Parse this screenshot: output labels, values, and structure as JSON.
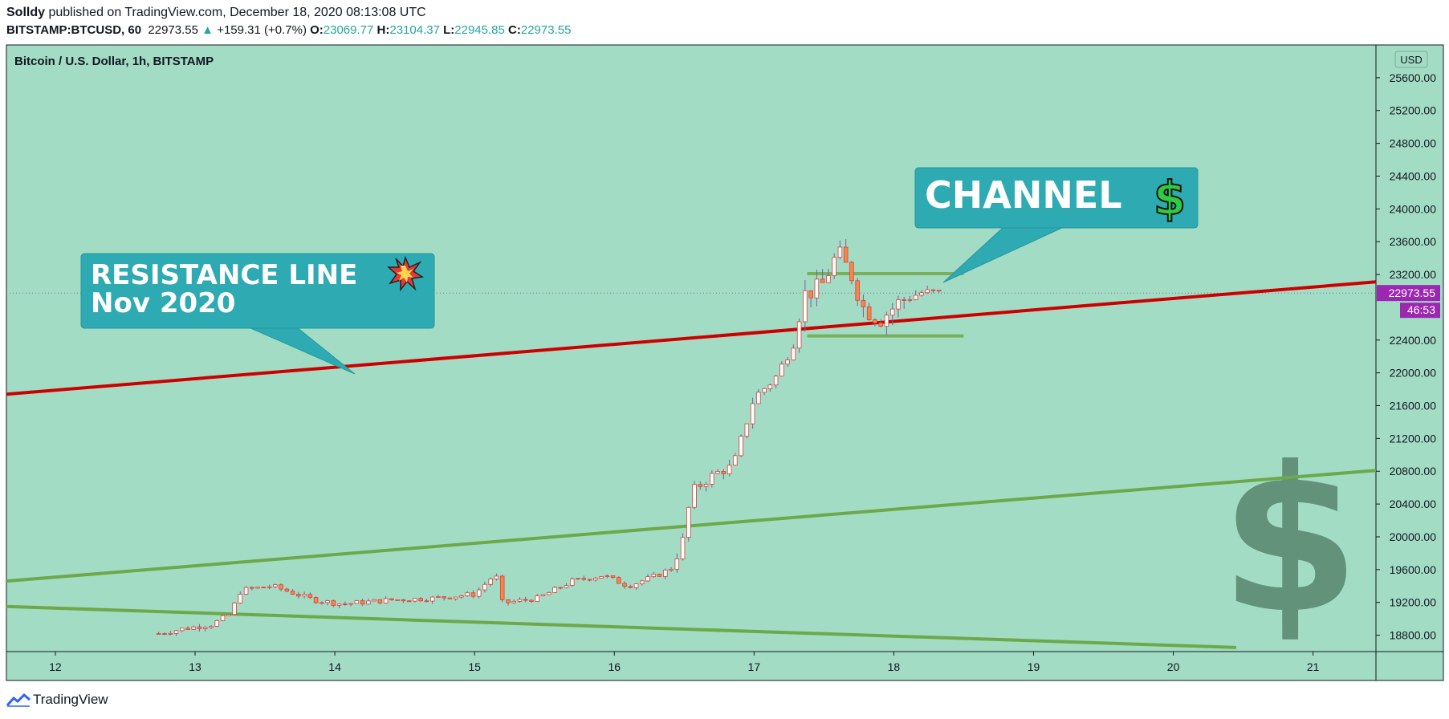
{
  "header": {
    "author": "Solldy",
    "published_text": "published on TradingView.com, December 18, 2020 08:13:08 UTC",
    "symbol": "BITSTAMP:BTCUSD, 60",
    "last": "22973.55",
    "change": "+159.31 (+0.7%)",
    "o_label": "O:",
    "o_value": "23069.77",
    "h_label": "H:",
    "h_value": "23104.37",
    "l_label": "L:",
    "l_value": "22945.85",
    "c_label": "C:",
    "c_value": "22973.55"
  },
  "footer": {
    "brand": "TradingView"
  },
  "chart_data": {
    "type": "candlestick",
    "title": "Bitcoin / U.S. Dollar, 1h, BITSTAMP",
    "currency": "USD",
    "x_ticks": [
      "12",
      "13",
      "14",
      "15",
      "16",
      "17",
      "18",
      "19",
      "20",
      "21"
    ],
    "y_ticks": [
      "25600.00",
      "25200.00",
      "24800.00",
      "24400.00",
      "24000.00",
      "23600.00",
      "23200.00",
      "22400.00",
      "22000.00",
      "21600.00",
      "21200.00",
      "20800.00",
      "20400.00",
      "20000.00",
      "19600.00",
      "19200.00",
      "18800.00"
    ],
    "ylim": [
      18600,
      26000
    ],
    "xlim": [
      11.65,
      21.45
    ],
    "last_price_label": "22973.55",
    "countdown_label": "46:53",
    "last_price": 22973.55,
    "annotations": [
      {
        "lines": [
          "RESISTANCE LINE",
          "Nov 2020"
        ],
        "icon": "collision-icon"
      },
      {
        "lines": [
          "CHANNEL"
        ],
        "icon": "dollar-icon"
      }
    ],
    "trendlines": [
      {
        "name": "resistance",
        "color": "#cc0000",
        "x": [
          11.65,
          21.45
        ],
        "y": [
          21740,
          23110
        ]
      },
      {
        "name": "upper-green",
        "color": "#6aaa4a",
        "x": [
          11.65,
          21.45
        ],
        "y": [
          19460,
          20810
        ]
      },
      {
        "name": "lower-green",
        "color": "#6aaa4a",
        "x": [
          11.65,
          20.45
        ],
        "y": [
          19150,
          18650
        ]
      },
      {
        "name": "channel-top",
        "color": "#7ab05a",
        "x": [
          17.38,
          18.5
        ],
        "y": [
          23210,
          23210
        ]
      },
      {
        "name": "channel-bottom",
        "color": "#7ab05a",
        "x": [
          17.38,
          18.5
        ],
        "y": [
          22450,
          22450
        ]
      }
    ],
    "candle_keypoints": {
      "t": [
        12.74,
        12.92,
        13.12,
        13.25,
        13.33,
        13.55,
        13.85,
        14.05,
        14.4,
        14.7,
        15.0,
        15.15,
        15.2,
        15.45,
        15.7,
        15.92,
        16.1,
        16.35,
        16.42,
        16.5,
        16.55,
        16.72,
        16.85,
        17.0,
        17.15,
        17.28,
        17.35,
        17.48,
        17.6,
        17.7,
        17.78,
        17.9,
        18.05,
        18.2,
        18.35
      ],
      "c": [
        18820,
        18880,
        18930,
        19060,
        19350,
        19400,
        19230,
        19180,
        19230,
        19250,
        19300,
        19550,
        19190,
        19250,
        19460,
        19530,
        19400,
        19560,
        19650,
        20000,
        20550,
        20770,
        20860,
        21700,
        21930,
        22350,
        22950,
        23050,
        23470,
        23180,
        22800,
        22650,
        22880,
        22980,
        22974
      ]
    }
  }
}
